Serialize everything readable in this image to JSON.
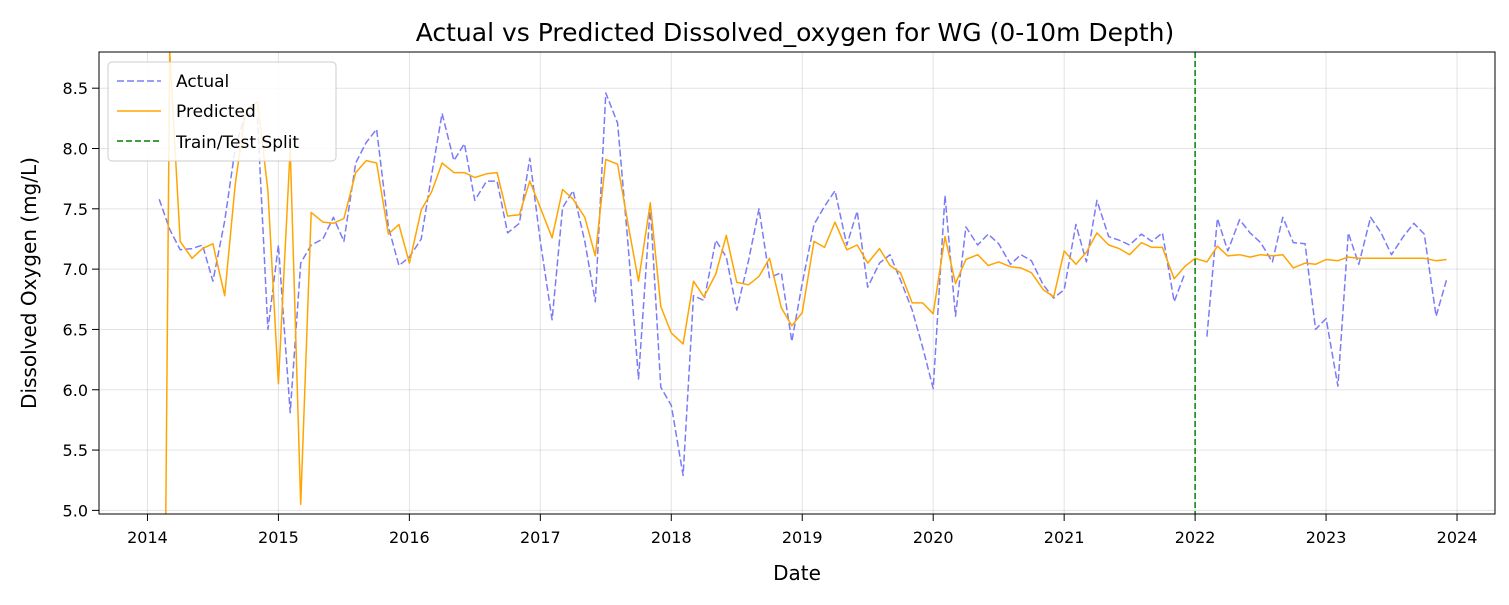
{
  "chart_data": {
    "type": "line",
    "title": "Actual vs Predicted Dissolved_oxygen for WG (0-10m Depth)",
    "xlabel": "Date",
    "ylabel": "Dissolved Oxygen (mg/L)",
    "xlim": [
      2013.63,
      2024.29
    ],
    "ylim": [
      4.97,
      8.8
    ],
    "xticks": [
      2014,
      2015,
      2016,
      2017,
      2018,
      2019,
      2020,
      2021,
      2022,
      2023,
      2024
    ],
    "xtick_labels": [
      "2014",
      "2015",
      "2016",
      "2017",
      "2018",
      "2019",
      "2020",
      "2021",
      "2022",
      "2023",
      "2024"
    ],
    "yticks": [
      5.0,
      5.5,
      6.0,
      6.5,
      7.0,
      7.5,
      8.0,
      8.5
    ],
    "ytick_labels": [
      "5.0",
      "5.5",
      "6.0",
      "6.5",
      "7.0",
      "7.5",
      "8.0",
      "8.5"
    ],
    "grid": true,
    "legend_position": "top-left",
    "series": [
      {
        "name": "Actual",
        "color": "#7b7bf7",
        "style": "dashed",
        "x": [
          2014.09,
          2014.17,
          2014.25,
          2014.34,
          2014.42,
          2014.5,
          2014.59,
          2014.67,
          2014.75,
          2014.84,
          2014.92,
          2015.0,
          2015.09,
          2015.17,
          2015.25,
          2015.34,
          2015.42,
          2015.5,
          2015.59,
          2015.67,
          2015.75,
          2015.84,
          2015.92,
          2016.0,
          2016.09,
          2016.17,
          2016.25,
          2016.34,
          2016.42,
          2016.5,
          2016.59,
          2016.67,
          2016.75,
          2016.84,
          2016.92,
          2017.0,
          2017.09,
          2017.17,
          2017.25,
          2017.34,
          2017.42,
          2017.5,
          2017.59,
          2017.67,
          2017.75,
          2017.84,
          2017.92,
          2018.0,
          2018.09,
          2018.17,
          2018.25,
          2018.34,
          2018.42,
          2018.5,
          2018.59,
          2018.67,
          2018.75,
          2018.84,
          2018.92,
          2019.0,
          2019.09,
          2019.17,
          2019.25,
          2019.34,
          2019.42,
          2019.5,
          2019.59,
          2019.67,
          2019.75,
          2019.84,
          2019.92,
          2020.0,
          2020.09,
          2020.17,
          2020.25,
          2020.34,
          2020.42,
          2020.5,
          2020.59,
          2020.67,
          2020.75,
          2020.84,
          2020.92,
          2021.0,
          2021.09,
          2021.17,
          2021.25,
          2021.34,
          2021.42,
          2021.5,
          2021.59,
          2021.67,
          2021.75,
          2021.84,
          2021.92,
          null,
          2022.09,
          2022.17,
          2022.25,
          2022.34,
          2022.42,
          2022.5,
          2022.59,
          2022.67,
          2022.75,
          2022.84,
          2022.92,
          2023.0,
          2023.09,
          2023.17,
          2023.25,
          2023.34,
          2023.42,
          2023.5,
          2023.59,
          2023.67,
          2023.75,
          2023.84,
          2023.92
        ],
        "y": [
          7.58,
          7.33,
          7.16,
          7.17,
          7.2,
          6.9,
          7.4,
          8.0,
          8.3,
          8.25,
          6.5,
          7.2,
          5.81,
          7.05,
          7.2,
          7.25,
          7.43,
          7.23,
          7.88,
          8.05,
          8.16,
          7.35,
          7.03,
          7.1,
          7.25,
          7.78,
          8.29,
          7.9,
          8.04,
          7.57,
          7.73,
          7.73,
          7.3,
          7.38,
          7.92,
          7.23,
          6.58,
          7.51,
          7.65,
          7.23,
          6.73,
          8.46,
          8.21,
          7.2,
          6.09,
          7.52,
          6.02,
          5.87,
          5.29,
          6.78,
          6.74,
          7.24,
          7.1,
          6.66,
          7.07,
          7.5,
          6.93,
          6.97,
          6.4,
          6.88,
          7.37,
          7.52,
          7.65,
          7.2,
          7.48,
          6.85,
          7.05,
          7.12,
          6.91,
          6.66,
          6.35,
          6.01,
          7.61,
          6.61,
          7.35,
          7.2,
          7.29,
          7.21,
          7.04,
          7.12,
          7.07,
          6.87,
          6.76,
          6.83,
          7.37,
          7.06,
          7.57,
          7.27,
          7.24,
          7.2,
          7.29,
          7.23,
          7.3,
          6.73,
          6.96,
          6.9,
          6.44,
          7.42,
          7.15,
          7.41,
          7.3,
          7.22,
          7.06,
          7.43,
          7.22,
          7.21,
          6.5,
          6.59,
          6.03,
          7.3,
          7.04,
          7.43,
          7.3,
          7.12,
          7.27,
          7.38,
          7.29,
          6.61,
          6.91
        ]
      },
      {
        "name": "Predicted",
        "color": "#ffa500",
        "style": "solid",
        "x": [
          2014.14,
          2014.17,
          2014.25,
          2014.34,
          2014.42,
          2014.5,
          2014.59,
          2014.67,
          2014.75,
          2014.84,
          2014.92,
          2015.0,
          2015.09,
          2015.17,
          2015.25,
          2015.34,
          2015.42,
          2015.5,
          2015.59,
          2015.67,
          2015.75,
          2015.84,
          2015.92,
          2016.0,
          2016.09,
          2016.17,
          2016.25,
          2016.34,
          2016.42,
          2016.5,
          2016.59,
          2016.67,
          2016.75,
          2016.84,
          2016.92,
          2017.0,
          2017.09,
          2017.17,
          2017.25,
          2017.34,
          2017.42,
          2017.5,
          2017.59,
          2017.67,
          2017.75,
          2017.84,
          2017.92,
          2018.0,
          2018.09,
          2018.17,
          2018.25,
          2018.34,
          2018.42,
          2018.5,
          2018.59,
          2018.67,
          2018.75,
          2018.84,
          2018.92,
          2019.0,
          2019.09,
          2019.17,
          2019.25,
          2019.34,
          2019.42,
          2019.5,
          2019.59,
          2019.67,
          2019.75,
          2019.84,
          2019.92,
          2020.0,
          2020.09,
          2020.17,
          2020.25,
          2020.34,
          2020.42,
          2020.5,
          2020.59,
          2020.67,
          2020.75,
          2020.84,
          2020.92,
          2021.0,
          2021.09,
          2021.17,
          2021.25,
          2021.34,
          2021.42,
          2021.5,
          2021.59,
          2021.67,
          2021.75,
          2021.84,
          2021.92,
          2022.0,
          2022.09,
          2022.17,
          2022.25,
          2022.34,
          2022.42,
          2022.5,
          2022.59,
          2022.67,
          2022.75,
          2022.84,
          2022.92,
          2023.0,
          2023.09,
          2023.17,
          2023.25,
          2023.34,
          2023.42,
          2023.5,
          2023.59,
          2023.67,
          2023.75,
          2023.84,
          2023.92
        ],
        "y": [
          4.97,
          8.8,
          7.23,
          7.09,
          7.17,
          7.21,
          6.78,
          7.7,
          8.32,
          8.39,
          7.65,
          6.05,
          8.0,
          5.05,
          7.47,
          7.39,
          7.38,
          7.42,
          7.8,
          7.9,
          7.88,
          7.29,
          7.37,
          7.05,
          7.49,
          7.64,
          7.88,
          7.8,
          7.8,
          7.76,
          7.79,
          7.8,
          7.44,
          7.45,
          7.73,
          7.51,
          7.26,
          7.66,
          7.58,
          7.43,
          7.11,
          7.91,
          7.87,
          7.37,
          6.9,
          7.55,
          6.69,
          6.47,
          6.38,
          6.9,
          6.77,
          6.96,
          7.28,
          6.89,
          6.87,
          6.94,
          7.09,
          6.68,
          6.53,
          6.64,
          7.23,
          7.18,
          7.39,
          7.16,
          7.2,
          7.05,
          7.17,
          7.03,
          6.97,
          6.72,
          6.72,
          6.63,
          7.27,
          6.88,
          7.08,
          7.12,
          7.03,
          7.06,
          7.02,
          7.01,
          6.97,
          6.83,
          6.77,
          7.15,
          7.04,
          7.14,
          7.3,
          7.2,
          7.17,
          7.12,
          7.22,
          7.18,
          7.18,
          6.92,
          7.02,
          7.09,
          7.06,
          7.19,
          7.11,
          7.12,
          7.1,
          7.12,
          7.11,
          7.12,
          7.01,
          7.05,
          7.04,
          7.08,
          7.07,
          7.1,
          7.09,
          7.09,
          7.09,
          7.09,
          7.09,
          7.09,
          7.09,
          7.07,
          7.08
        ]
      },
      {
        "name": "Train/Test Split",
        "color": "#008000",
        "style": "dashed",
        "type": "vline",
        "x": 2022.0
      }
    ]
  }
}
